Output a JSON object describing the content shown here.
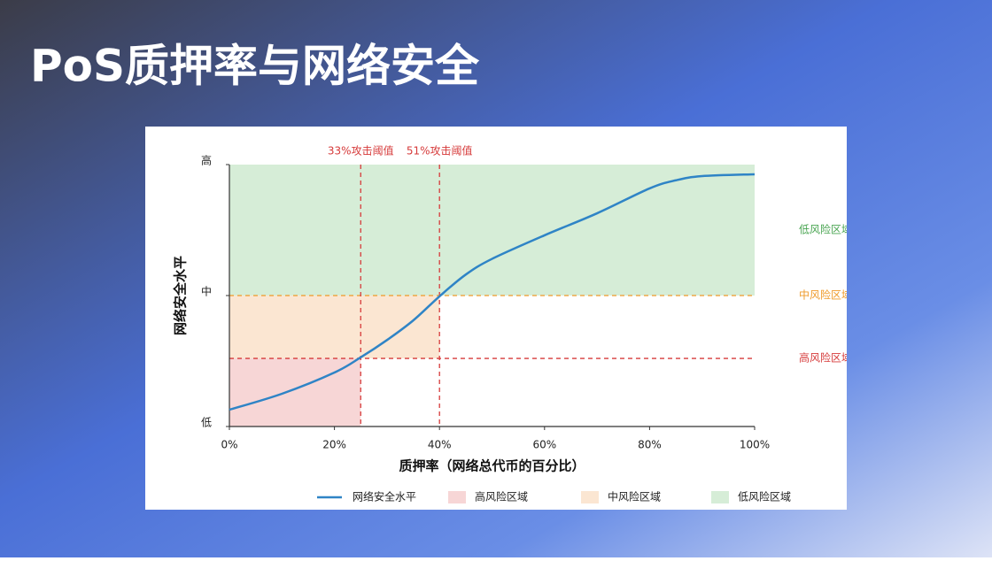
{
  "header": {
    "title": "PoS质押率与网络安全"
  },
  "chart_data": {
    "type": "line",
    "x_label": "质押率（网络总代币的百分比）",
    "y_label": "网络安全水平",
    "xlim": [
      0,
      100
    ],
    "xticks": [
      {
        "value": 0,
        "label": "0%"
      },
      {
        "value": 20,
        "label": "20%"
      },
      {
        "value": 40,
        "label": "40%"
      },
      {
        "value": 60,
        "label": "60%"
      },
      {
        "value": 80,
        "label": "80%"
      },
      {
        "value": 100,
        "label": "100%"
      }
    ],
    "ylim": [
      0,
      100
    ],
    "yticks": [
      {
        "value": 0,
        "label": "低"
      },
      {
        "value": 50,
        "label": "中"
      },
      {
        "value": 100,
        "label": "高"
      }
    ],
    "series": [
      {
        "name": "网络安全水平",
        "color": "#2f84c6",
        "x": [
          0,
          10,
          20,
          25,
          30,
          35,
          40,
          45,
          50,
          60,
          70,
          80,
          85,
          90,
          100
        ],
        "values": [
          6.4,
          12.5,
          20.6,
          26.4,
          33,
          40.5,
          49.7,
          58,
          64,
          73,
          81.4,
          90.9,
          94,
          95.6,
          96.3
        ]
      }
    ],
    "zones": [
      {
        "name": "高风险区域",
        "color": "#f7d6d6",
        "line_color": "#d63a3a",
        "x": [
          0,
          25
        ],
        "y": [
          0,
          26
        ]
      },
      {
        "name": "中风险区域",
        "color": "#fbe6d2",
        "line_color": "#ef9a2a",
        "x": [
          0,
          40
        ],
        "y": [
          26,
          50
        ]
      },
      {
        "name": "低风险区域",
        "color": "#d6edd7",
        "line_color": "#4aa552",
        "x": [
          0,
          100
        ],
        "y": [
          50,
          100
        ]
      }
    ],
    "thresholds": [
      {
        "x": 25,
        "label": "33%攻击阈值"
      },
      {
        "x": 40,
        "label": "51%攻击阈值"
      }
    ],
    "threshold_color": "#d63a3a"
  }
}
